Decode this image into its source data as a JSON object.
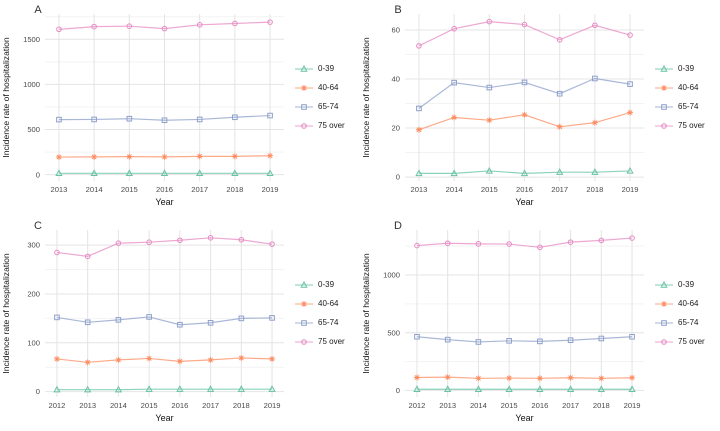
{
  "figure": {
    "background": "#ffffff",
    "grid_major_color": "#e4e4e4",
    "grid_minor_color": "#f3f3f3",
    "tick_text_color": "#4a4a4a",
    "axis_title_color": "#111111",
    "panel_label_color": "#333333",
    "series_colors": {
      "0-39": "#66c2a5",
      "40-64": "#fc8d62",
      "65-74": "#8da0cb",
      "75 over": "#e78ac3"
    }
  },
  "chart_data": [
    {
      "type": "line",
      "panel_label": "A",
      "xlabel": "Year",
      "ylabel": "Incidence rate of hospitalization",
      "x": [
        2013,
        2014,
        2015,
        2016,
        2017,
        2018,
        2019
      ],
      "yticks": [
        0,
        500,
        1000,
        1500
      ],
      "ylim": [
        -70,
        1780
      ],
      "grid": true,
      "legend_position": "right",
      "series": [
        {
          "name": "0-39",
          "marker": "triangle",
          "color": "#66c2a5",
          "values": [
            15,
            15,
            15,
            15,
            15,
            15,
            15
          ]
        },
        {
          "name": "40-64",
          "marker": "asterisk",
          "color": "#fc8d62",
          "values": [
            195,
            197,
            200,
            197,
            203,
            203,
            210
          ]
        },
        {
          "name": "65-74",
          "marker": "square",
          "color": "#8da0cb",
          "values": [
            610,
            612,
            620,
            603,
            612,
            636,
            655
          ]
        },
        {
          "name": "75 over",
          "marker": "circle",
          "color": "#e78ac3",
          "values": [
            1610,
            1640,
            1645,
            1618,
            1660,
            1675,
            1690
          ]
        }
      ]
    },
    {
      "type": "line",
      "panel_label": "B",
      "xlabel": "Year",
      "ylabel": "Incidence rate of hospitalization",
      "x": [
        2013,
        2014,
        2015,
        2016,
        2017,
        2018,
        2019
      ],
      "yticks": [
        0,
        20,
        40,
        60
      ],
      "ylim": [
        -1.6,
        66.5
      ],
      "grid": true,
      "legend_position": "right",
      "series": [
        {
          "name": "0-39",
          "marker": "triangle",
          "color": "#66c2a5",
          "values": [
            1.5,
            1.5,
            2.5,
            1.5,
            2,
            2,
            2.5
          ]
        },
        {
          "name": "40-64",
          "marker": "asterisk",
          "color": "#fc8d62",
          "values": [
            19.3,
            24.3,
            23.2,
            25.4,
            20.5,
            22.2,
            26.3
          ]
        },
        {
          "name": "65-74",
          "marker": "square",
          "color": "#8da0cb",
          "values": [
            28,
            38.5,
            36.5,
            38.6,
            34,
            40.2,
            37.9
          ]
        },
        {
          "name": "75 over",
          "marker": "circle",
          "color": "#e78ac3",
          "values": [
            53.5,
            60.5,
            63.4,
            62.2,
            56,
            61.9,
            57.9
          ]
        }
      ]
    },
    {
      "type": "line",
      "panel_label": "C",
      "xlabel": "Year",
      "ylabel": "Incidence rate of hospitalization",
      "x": [
        2012,
        2013,
        2014,
        2015,
        2016,
        2017,
        2018,
        2019
      ],
      "yticks": [
        0,
        100,
        200,
        300
      ],
      "ylim": [
        -11,
        331
      ],
      "grid": true,
      "legend_position": "right",
      "series": [
        {
          "name": "0-39",
          "marker": "triangle",
          "color": "#66c2a5",
          "values": [
            4,
            4,
            4,
            5,
            5,
            5,
            5,
            5
          ]
        },
        {
          "name": "40-64",
          "marker": "asterisk",
          "color": "#fc8d62",
          "values": [
            67,
            60,
            65,
            68,
            62,
            65,
            69,
            67
          ]
        },
        {
          "name": "65-74",
          "marker": "square",
          "color": "#8da0cb",
          "values": [
            152,
            142,
            147,
            153,
            137,
            141,
            150,
            151
          ]
        },
        {
          "name": "75 over",
          "marker": "circle",
          "color": "#e78ac3",
          "values": [
            285,
            277,
            304,
            306,
            310,
            315,
            311,
            302
          ]
        }
      ]
    },
    {
      "type": "line",
      "panel_label": "D",
      "xlabel": "Year",
      "ylabel": "Incidence rate of hospitalization",
      "x": [
        2012,
        2013,
        2014,
        2015,
        2016,
        2017,
        2018,
        2019
      ],
      "yticks": [
        0,
        500,
        1000
      ],
      "ylim": [
        -57,
        1390
      ],
      "grid": true,
      "legend_position": "right",
      "series": [
        {
          "name": "0-39",
          "marker": "triangle",
          "color": "#66c2a5",
          "values": [
            10,
            10,
            10,
            10,
            10,
            10,
            10,
            10
          ]
        },
        {
          "name": "40-64",
          "marker": "asterisk",
          "color": "#fc8d62",
          "values": [
            112,
            115,
            105,
            107,
            105,
            110,
            105,
            110
          ]
        },
        {
          "name": "65-74",
          "marker": "square",
          "color": "#8da0cb",
          "values": [
            465,
            440,
            420,
            430,
            425,
            435,
            450,
            465
          ]
        },
        {
          "name": "75 over",
          "marker": "circle",
          "color": "#e78ac3",
          "values": [
            1255,
            1275,
            1270,
            1268,
            1240,
            1285,
            1300,
            1320
          ]
        }
      ]
    }
  ]
}
